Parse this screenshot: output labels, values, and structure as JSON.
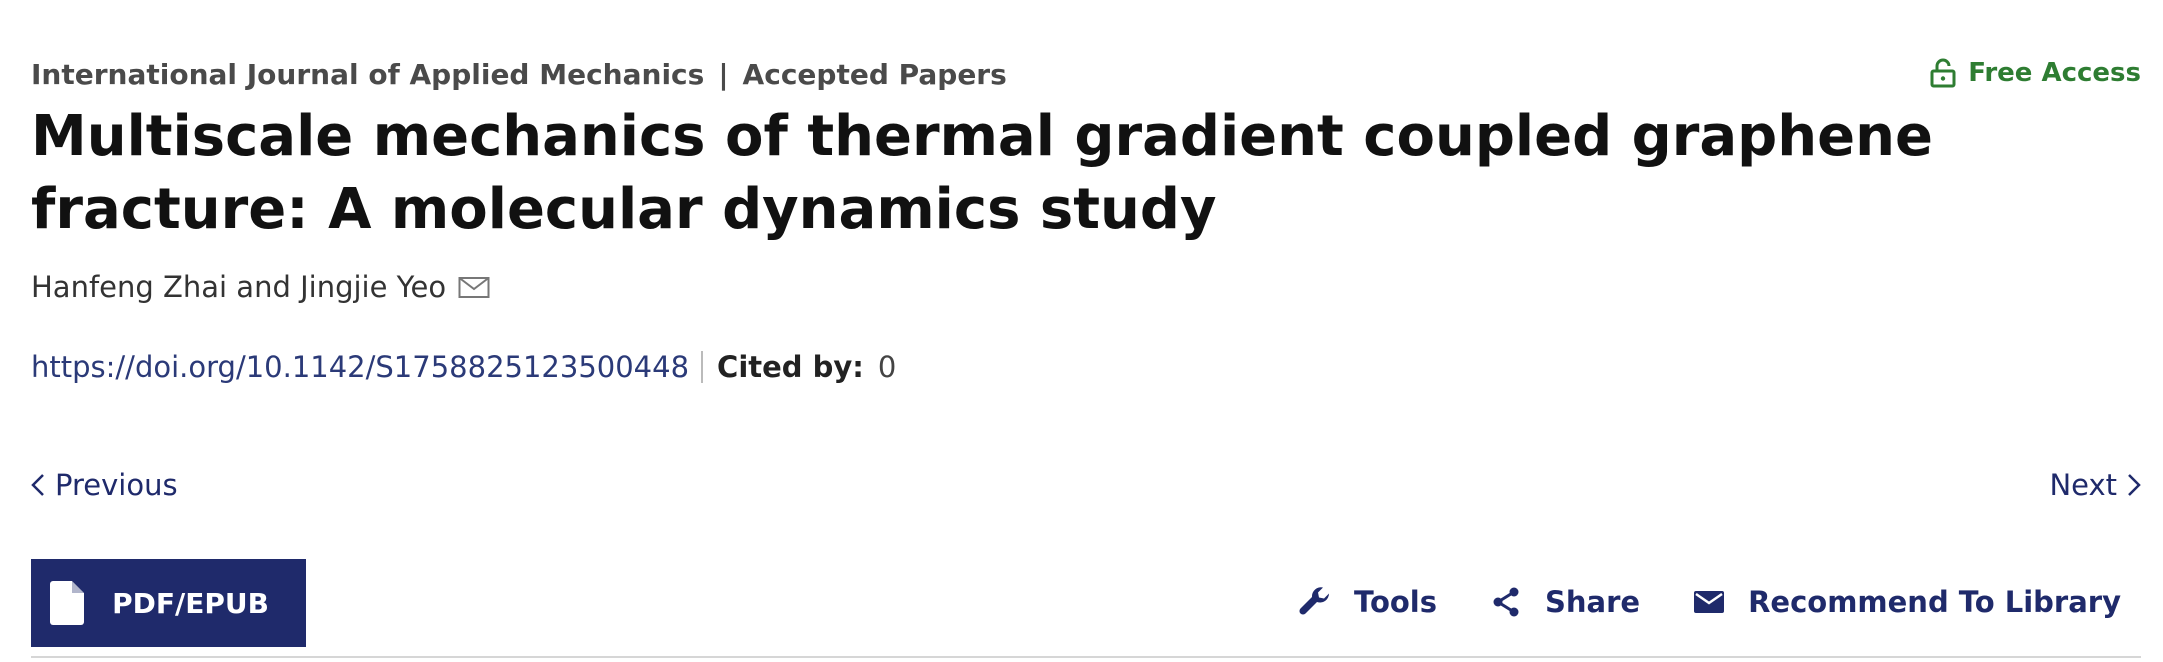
{
  "breadcrumb": {
    "journal": "International Journal of Applied Mechanics",
    "separator": "|",
    "section": "Accepted Papers"
  },
  "access": {
    "label": "Free Access",
    "icon": "unlock-icon",
    "color": "#2e7d32"
  },
  "article": {
    "title": "Multiscale mechanics of thermal gradient coupled graphene fracture: A molecular dynamics study",
    "authors": "Hanfeng Zhai and Jingjie Yeo",
    "author_icon": "envelope-icon",
    "doi": "https://doi.org/10.1142/S1758825123500448",
    "cited_by_label": "Cited by:",
    "cited_by_value": "0"
  },
  "navigation": {
    "previous_label": "Previous",
    "next_label": "Next"
  },
  "toolbar": {
    "pdf_label": "PDF/EPUB",
    "tools_label": "Tools",
    "share_label": "Share",
    "recommend_label": "Recommend To Library"
  },
  "colors": {
    "primary": "#1f2a6b",
    "link": "#2b3a78",
    "access": "#2e7d32"
  }
}
